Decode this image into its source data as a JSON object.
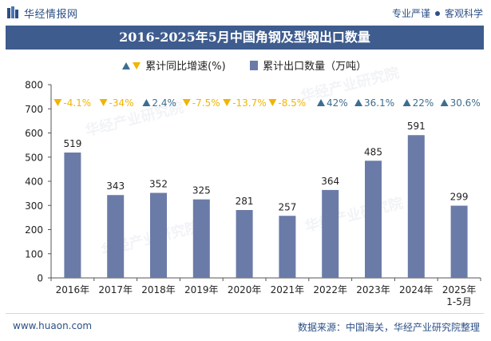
{
  "header": {
    "brand": "华经情报网",
    "slogan_left": "专业严谨",
    "slogan_right": "客观科学"
  },
  "title": "2016-2025年5月中国角钢及型钢出口数量",
  "legend": {
    "growth_label": "累计同比增速(%)",
    "volume_label": "累计出口数量（万吨）"
  },
  "footer": {
    "website": "www.huaon.com",
    "source": "数据来源：中国海关，华经产业研究院整理"
  },
  "colors": {
    "bar": "#6b7ba8",
    "up": "#3e6d8e",
    "down": "#f2b400",
    "title_band": "#3e5c8e"
  },
  "chart_data": {
    "type": "bar",
    "categories": [
      "2016年",
      "2017年",
      "2018年",
      "2019年",
      "2020年",
      "2021年",
      "2022年",
      "2023年",
      "2024年",
      "2025年\n1-5月"
    ],
    "series": [
      {
        "name": "累计出口数量（万吨）",
        "values": [
          519,
          343,
          352,
          325,
          281,
          257,
          364,
          485,
          591,
          299
        ]
      },
      {
        "name": "累计同比增速(%)",
        "values": [
          -4.1,
          -34,
          2.4,
          -7.5,
          -13.7,
          -8.5,
          42,
          36.1,
          22,
          30.6
        ],
        "display": "annotation-row"
      }
    ],
    "growth_text": [
      "-4.1%",
      "-34%",
      "2.4%",
      "-7.5%",
      "-13.7%",
      "-8.5%",
      "42%",
      "36.1%",
      "22%",
      "30.6%"
    ],
    "ylim": [
      0,
      800
    ],
    "yticks": [
      0,
      100,
      200,
      300,
      400,
      500,
      600,
      700,
      800
    ],
    "grid": false
  },
  "watermark": "华经产业研究院"
}
